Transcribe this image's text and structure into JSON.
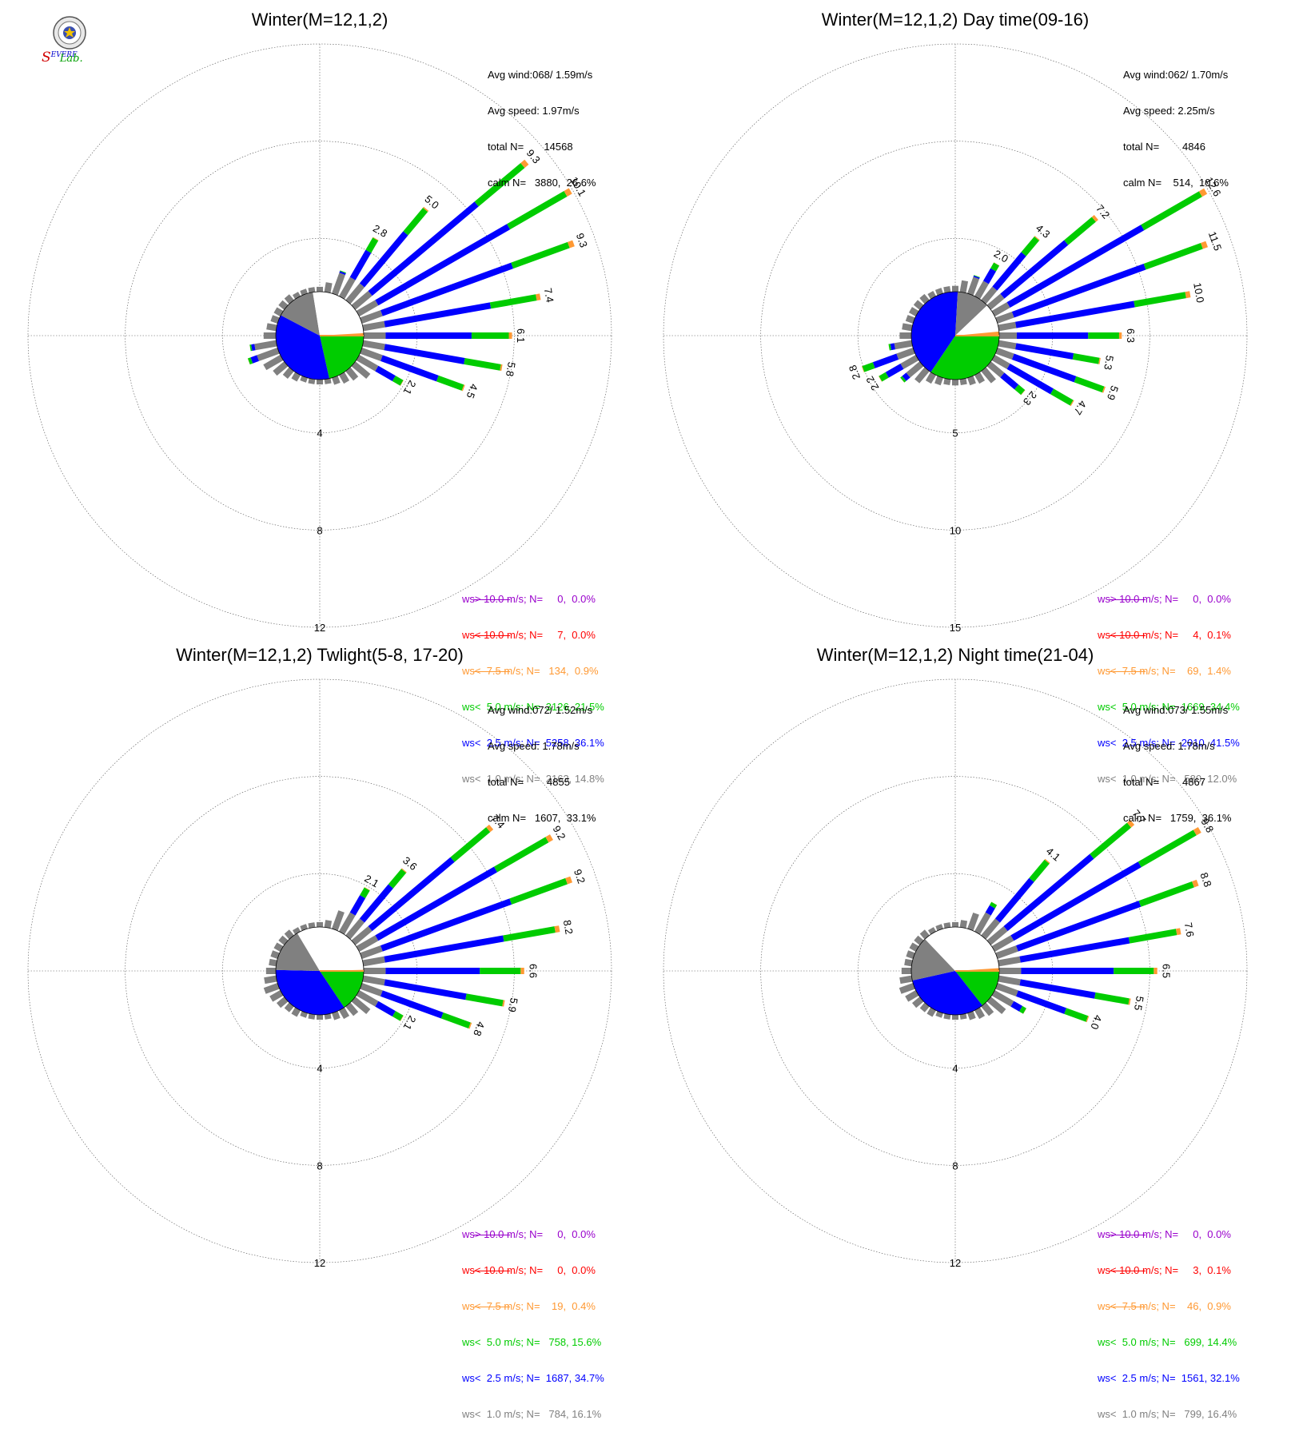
{
  "logo": {
    "text_s": "S",
    "text_evere": "EVERE",
    "text_storm": "TORM",
    "text_lab": "Lab.",
    "colors": {
      "s": "#d10000",
      "severe": "#0000cc",
      "storm": "#0000cc",
      "lab": "#00a000"
    }
  },
  "colors": {
    "gt10": "#9900cc",
    "lt10": "#ff0000",
    "lt7_5": "#ff9933",
    "lt5": "#00cc00",
    "lt2_5": "#0000ff",
    "lt1": "#808080",
    "calm": "#ffffff"
  },
  "chart_data": [
    {
      "type": "windrose",
      "title": "Winter(M=12,1,2)",
      "stats": {
        "avg_wind": "Avg wind:068/ 1.59m/s",
        "avg_speed": "Avg speed: 1.97m/s",
        "total": "total N=       14568",
        "calm": "calm N=   3880,  26.6%"
      },
      "ring_labels": [
        "4",
        "8",
        "12"
      ],
      "ring_max": 12,
      "legend": [
        {
          "text": "ws> 10.0 m/s; N=     0,  0.0%",
          "color": "gt10"
        },
        {
          "text": "ws< 10.0 m/s; N=     7,  0.0%",
          "color": "lt10"
        },
        {
          "text": "ws<  7.5 m/s; N=   134,  0.9%",
          "color": "lt7_5"
        },
        {
          "text": "ws<  5.0 m/s; N=  3126, 21.5%",
          "color": "lt5"
        },
        {
          "text": "ws<  2.5 m/s; N=  5258, 36.1%",
          "color": "lt2_5"
        },
        {
          "text": "ws<  1.0 m/s; N=  2163, 14.8%",
          "color": "lt1"
        }
      ],
      "pie": {
        "lt1": 14.8,
        "lt2_5": 36.1,
        "lt5": 21.5,
        "lt7_5": 0.9,
        "lt10": 0.0,
        "calm": 26.6
      },
      "directions": [
        0,
        10,
        20,
        30,
        40,
        50,
        60,
        70,
        80,
        90,
        100,
        110,
        120,
        130,
        140,
        150,
        160,
        170,
        180,
        190,
        200,
        210,
        220,
        230,
        240,
        250,
        260,
        270,
        280,
        290,
        300,
        310,
        320,
        330,
        340,
        350
      ],
      "totals": [
        0.2,
        0.4,
        1.0,
        2.8,
        5.0,
        9.3,
        10.1,
        9.3,
        7.4,
        6.1,
        5.8,
        4.5,
        2.1,
        0.8,
        0.5,
        0.4,
        0.3,
        0.2,
        0.2,
        0.2,
        0.2,
        0.3,
        0.4,
        0.6,
        0.8,
        1.3,
        1.1,
        0.5,
        0.4,
        0.3,
        0.3,
        0.3,
        0.3,
        0.2,
        0.2,
        0.2
      ],
      "labels": {
        "30": "2.8",
        "40": "5.0",
        "50": "9.3",
        "60": "10.1",
        "70": "9.3",
        "80": "7.4",
        "90": "6.1",
        "100": "5.8",
        "110": "4.5",
        "120": "2.1"
      }
    },
    {
      "type": "windrose",
      "title": "Winter(M=12,1,2) Day time(09-16)",
      "stats": {
        "avg_wind": "Avg wind:062/ 1.70m/s",
        "avg_speed": "Avg speed: 2.25m/s",
        "total": "total N=        4846",
        "calm": "calm N=    514,  10.6%"
      },
      "ring_labels": [
        "5",
        "10",
        "15"
      ],
      "ring_max": 15,
      "legend": [
        {
          "text": "ws> 10.0 m/s; N=     0,  0.0%",
          "color": "gt10"
        },
        {
          "text": "ws< 10.0 m/s; N=     4,  0.1%",
          "color": "lt10"
        },
        {
          "text": "ws<  7.5 m/s; N=    69,  1.4%",
          "color": "lt7_5"
        },
        {
          "text": "ws<  5.0 m/s; N=  1669, 34.4%",
          "color": "lt5"
        },
        {
          "text": "ws<  2.5 m/s; N=  2010, 41.5%",
          "color": "lt2_5"
        },
        {
          "text": "ws<  1.0 m/s; N=   580, 12.0%",
          "color": "lt1"
        }
      ],
      "pie": {
        "lt1": 12.0,
        "lt2_5": 41.5,
        "lt5": 34.4,
        "lt7_5": 1.4,
        "lt10": 0.1,
        "calm": 10.6
      },
      "directions": [
        0,
        10,
        20,
        30,
        40,
        50,
        60,
        70,
        80,
        90,
        100,
        110,
        120,
        130,
        140,
        150,
        160,
        170,
        180,
        190,
        200,
        210,
        220,
        230,
        240,
        250,
        260,
        270,
        280,
        290,
        300,
        310,
        320,
        330,
        340,
        350
      ],
      "totals": [
        0.3,
        0.6,
        1.0,
        2.0,
        4.3,
        7.2,
        12.6,
        11.5,
        10.0,
        6.3,
        5.3,
        5.9,
        4.7,
        2.3,
        0.8,
        0.5,
        0.4,
        0.3,
        0.3,
        0.3,
        0.4,
        0.5,
        0.8,
        1.3,
        2.2,
        2.8,
        1.2,
        0.6,
        0.5,
        0.4,
        0.4,
        0.4,
        0.4,
        0.3,
        0.3,
        0.3
      ],
      "labels": {
        "30": "2.0",
        "40": "4.3",
        "50": "7.2",
        "60": "12.6",
        "70": "11.5",
        "80": "10.0",
        "90": "6.3",
        "100": "5.3",
        "110": "5.9",
        "120": "4.7",
        "130": "2.3",
        "240": "2.2",
        "250": "2.8"
      }
    },
    {
      "type": "windrose",
      "title": "Winter(M=12,1,2) Twlight(5-8, 17-20)",
      "stats": {
        "avg_wind": "Avg wind:072/ 1.52m/s",
        "avg_speed": "Avg speed: 1.78m/s",
        "total": "total N=        4855",
        "calm": "calm N=   1607,  33.1%"
      },
      "ring_labels": [
        "4",
        "8",
        "12"
      ],
      "ring_max": 12,
      "legend": [
        {
          "text": "ws> 10.0 m/s; N=     0,  0.0%",
          "color": "gt10"
        },
        {
          "text": "ws< 10.0 m/s; N=     0,  0.0%",
          "color": "lt10"
        },
        {
          "text": "ws<  7.5 m/s; N=    19,  0.4%",
          "color": "lt7_5"
        },
        {
          "text": "ws<  5.0 m/s; N=   758, 15.6%",
          "color": "lt5"
        },
        {
          "text": "ws<  2.5 m/s; N=  1687, 34.7%",
          "color": "lt2_5"
        },
        {
          "text": "ws<  1.0 m/s; N=   784, 16.1%",
          "color": "lt1"
        }
      ],
      "pie": {
        "lt1": 16.1,
        "lt2_5": 34.7,
        "lt5": 15.6,
        "lt7_5": 0.4,
        "lt10": 0.0,
        "calm": 33.1
      },
      "directions": [
        0,
        10,
        20,
        30,
        40,
        50,
        60,
        70,
        80,
        90,
        100,
        110,
        120,
        130,
        140,
        150,
        160,
        170,
        180,
        190,
        200,
        210,
        220,
        230,
        240,
        250,
        260,
        270,
        280,
        290,
        300,
        310,
        320,
        330,
        340,
        350
      ],
      "totals": [
        0.2,
        0.3,
        0.8,
        2.1,
        3.6,
        7.4,
        9.2,
        9.2,
        8.2,
        6.6,
        5.9,
        4.8,
        2.1,
        0.8,
        0.5,
        0.4,
        0.3,
        0.2,
        0.2,
        0.2,
        0.2,
        0.3,
        0.3,
        0.4,
        0.5,
        0.6,
        0.5,
        0.4,
        0.3,
        0.3,
        0.3,
        0.3,
        0.3,
        0.2,
        0.2,
        0.2
      ],
      "labels": {
        "30": "2.1",
        "40": "3.6",
        "50": "7.4",
        "60": "9.2",
        "70": "9.2",
        "80": "8.2",
        "90": "6.6",
        "100": "5.9",
        "110": "4.8",
        "120": "2.1"
      }
    },
    {
      "type": "windrose",
      "title": "Winter(M=12,1,2) Night time(21-04)",
      "stats": {
        "avg_wind": "Avg wind:073/ 1.55m/s",
        "avg_speed": "Avg speed: 1.78m/s",
        "total": "total N=        4867",
        "calm": "calm N=   1759,  36.1%"
      },
      "ring_labels": [
        "4",
        "8",
        "12"
      ],
      "ring_max": 12,
      "legend": [
        {
          "text": "ws> 10.0 m/s; N=     0,  0.0%",
          "color": "gt10"
        },
        {
          "text": "ws< 10.0 m/s; N=     3,  0.1%",
          "color": "lt10"
        },
        {
          "text": "ws<  7.5 m/s; N=    46,  0.9%",
          "color": "lt7_5"
        },
        {
          "text": "ws<  5.0 m/s; N=   699, 14.4%",
          "color": "lt5"
        },
        {
          "text": "ws<  2.5 m/s; N=  1561, 32.1%",
          "color": "lt2_5"
        },
        {
          "text": "ws<  1.0 m/s; N=   799, 16.4%",
          "color": "lt1"
        }
      ],
      "pie": {
        "lt1": 16.4,
        "lt2_5": 32.1,
        "lt5": 14.4,
        "lt7_5": 0.9,
        "lt10": 0.1,
        "calm": 36.1
      },
      "directions": [
        0,
        10,
        20,
        30,
        40,
        50,
        60,
        70,
        80,
        90,
        100,
        110,
        120,
        130,
        140,
        150,
        160,
        170,
        180,
        190,
        200,
        210,
        220,
        230,
        240,
        250,
        260,
        270,
        280,
        290,
        300,
        310,
        320,
        330,
        340,
        350
      ],
      "totals": [
        0.2,
        0.3,
        0.7,
        1.4,
        4.1,
        7.7,
        9.8,
        8.8,
        7.6,
        6.5,
        5.5,
        4.0,
        1.5,
        0.8,
        0.5,
        0.4,
        0.3,
        0.2,
        0.2,
        0.2,
        0.2,
        0.3,
        0.3,
        0.4,
        0.5,
        0.6,
        0.5,
        0.4,
        0.3,
        0.3,
        0.3,
        0.3,
        0.3,
        0.2,
        0.2,
        0.2
      ],
      "labels": {
        "40": "4.1",
        "50": "7.7",
        "60": "9.8",
        "70": "8.8",
        "80": "7.6",
        "90": "6.5",
        "100": "5.5",
        "110": "4.0"
      }
    }
  ]
}
